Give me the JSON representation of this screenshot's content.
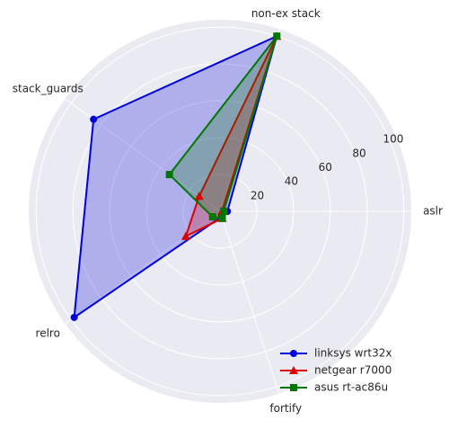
{
  "chart_data": {
    "type": "radar",
    "categories": [
      "aslr",
      "non-ex stack",
      "stack_guards",
      "relro",
      "fortify"
    ],
    "ylim": [
      0,
      104
    ],
    "yticks": [
      20,
      40,
      60,
      80,
      100
    ],
    "grid": true,
    "legend": "lower right",
    "series": [
      {
        "name": "linksys wrt32x",
        "color": "#0000dd",
        "marker": "circle",
        "values": [
          4,
          100,
          85,
          98,
          3
        ]
      },
      {
        "name": "netgear r7000",
        "color": "#dd0000",
        "marker": "triangle",
        "values": [
          1,
          100,
          14,
          23,
          4
        ]
      },
      {
        "name": "asus rt-ac86u",
        "color": "#007700",
        "marker": "square",
        "values": [
          2,
          100,
          34,
          5,
          4
        ]
      }
    ]
  }
}
